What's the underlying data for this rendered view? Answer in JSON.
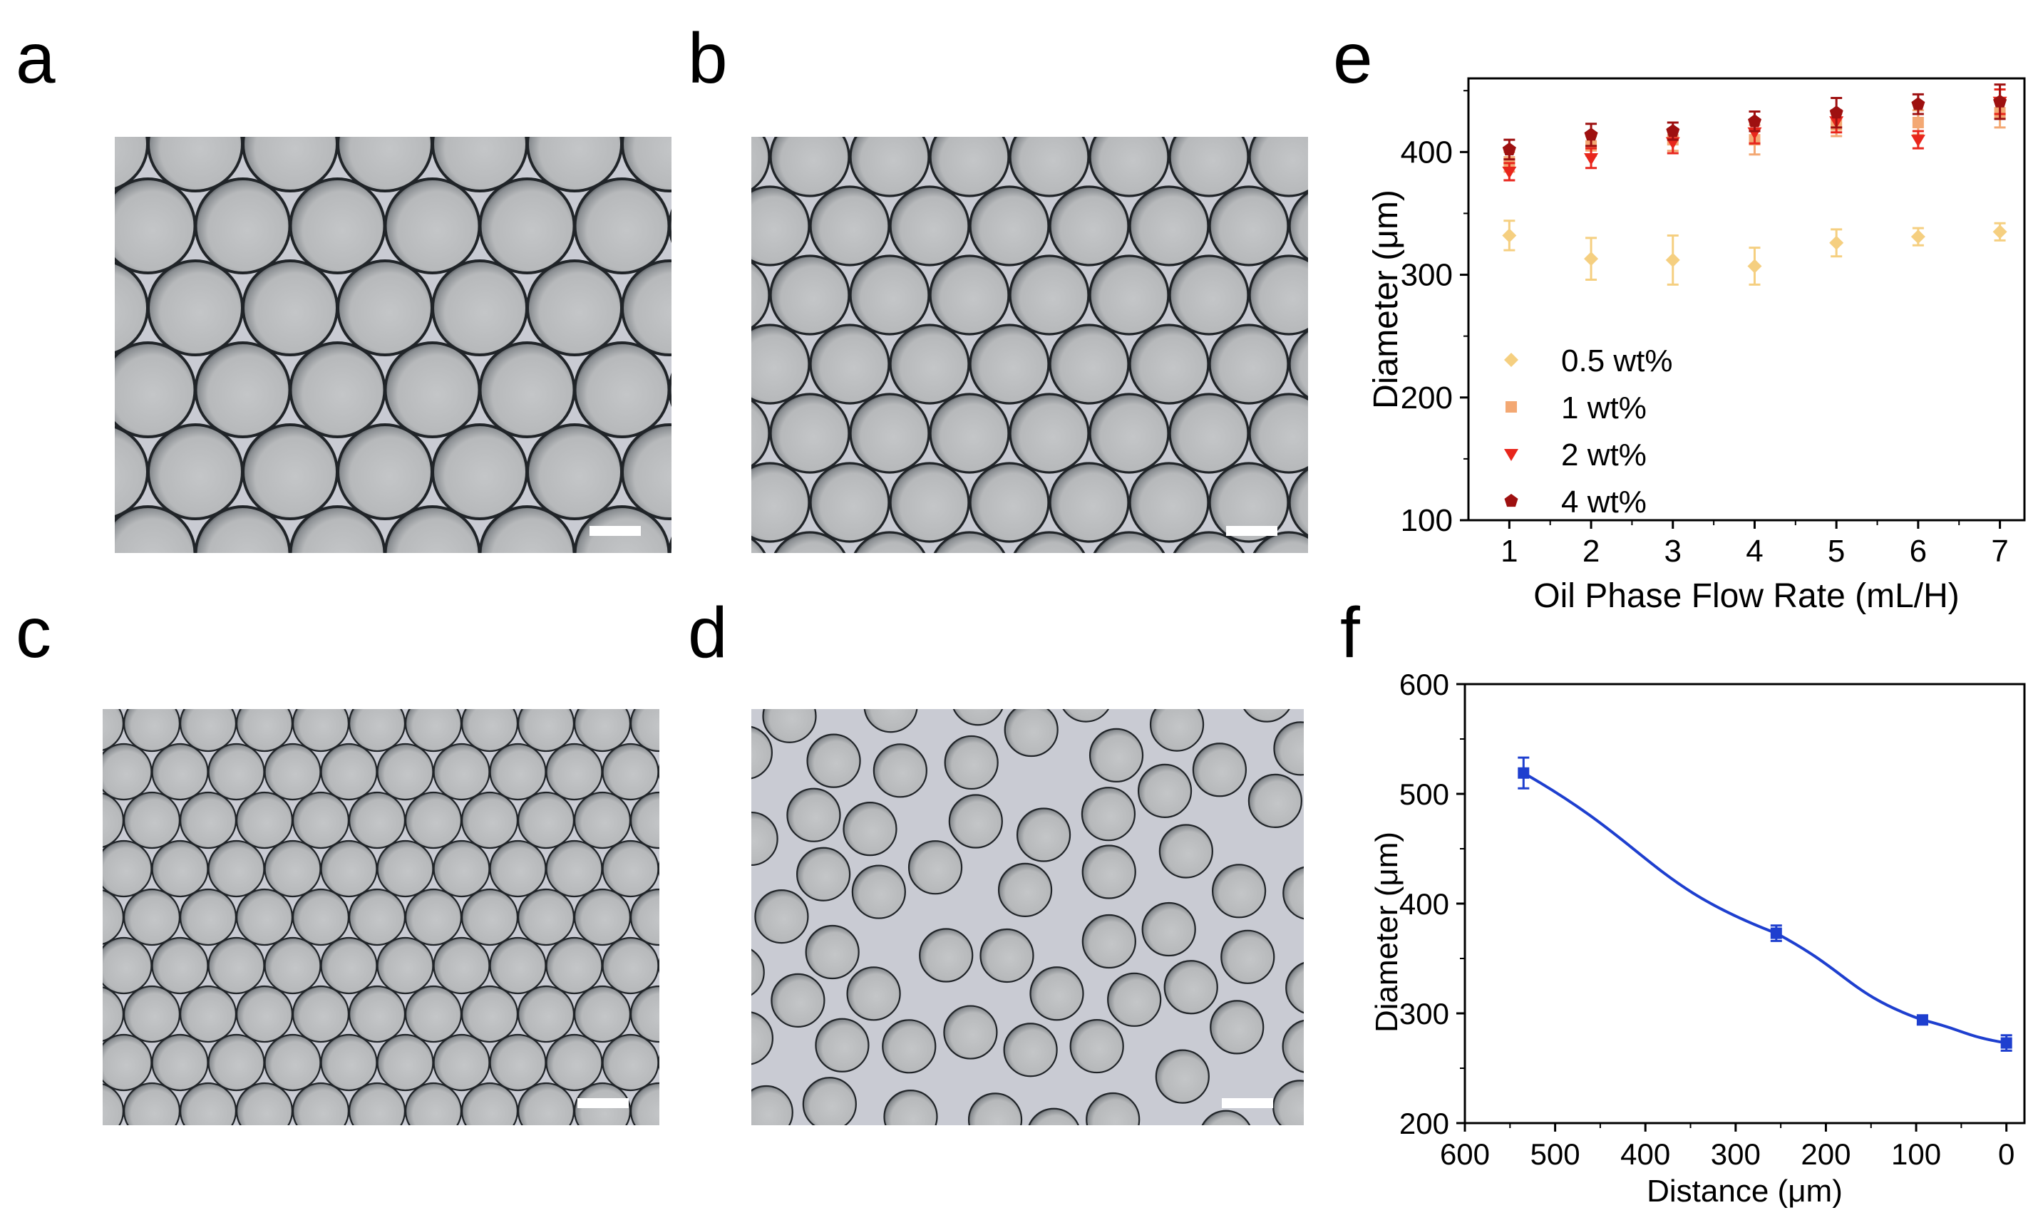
{
  "panels": {
    "a": {
      "letter": "a"
    },
    "b": {
      "letter": "b"
    },
    "c": {
      "letter": "c"
    },
    "d": {
      "letter": "d"
    },
    "e": {
      "letter": "e"
    },
    "f": {
      "letter": "f"
    }
  },
  "colors": {
    "series_0_5": "#f5cf80",
    "series_1": "#f3a873",
    "series_2": "#e8261c",
    "series_4": "#9e1010",
    "line_f": "#1e3fcf",
    "micro_bg": "#c9cbd3",
    "droplet_rim": "#202428",
    "scale_bar": "#ffffff"
  },
  "chart_data": [
    {
      "type": "scatter",
      "panel": "e",
      "xlabel": "Oil Phase Flow Rate (mL/H)",
      "ylabel": "Diameter (μm)",
      "xlim": [
        0.5,
        7.3
      ],
      "ylim": [
        100,
        460
      ],
      "xticks": [
        1,
        2,
        3,
        4,
        5,
        6,
        7
      ],
      "yticks": [
        100,
        200,
        300,
        400
      ],
      "legend_position": "bottom-left",
      "series": [
        {
          "name": "0.5 wt%",
          "marker": "diamond",
          "color": "#f5cf80",
          "x": [
            1,
            2,
            3,
            4,
            5,
            6,
            7
          ],
          "y": [
            332,
            313,
            312,
            307,
            326,
            331,
            335
          ],
          "err": [
            12,
            17,
            20,
            15,
            11,
            7,
            7
          ]
        },
        {
          "name": "1  wt%",
          "marker": "square",
          "color": "#f3a873",
          "x": [
            1,
            2,
            3,
            4,
            5,
            6,
            7
          ],
          "y": [
            392,
            405,
            410,
            410,
            422,
            424,
            432
          ],
          "err": [
            8,
            8,
            9,
            12,
            9,
            10,
            12
          ]
        },
        {
          "name": "2 wt%",
          "marker": "triangle-down",
          "color": "#e8261c",
          "x": [
            1,
            2,
            3,
            4,
            5,
            6,
            7
          ],
          "y": [
            384,
            395,
            408,
            416,
            425,
            410,
            441
          ],
          "err": [
            7,
            8,
            9,
            9,
            9,
            7,
            10
          ]
        },
        {
          "name": "4 wt%",
          "marker": "pentagon",
          "color": "#9e1010",
          "x": [
            1,
            2,
            3,
            4,
            5,
            6,
            7
          ],
          "y": [
            402,
            414,
            417,
            425,
            432,
            439,
            441
          ],
          "err": [
            8,
            9,
            7,
            8,
            12,
            8,
            14
          ]
        }
      ]
    },
    {
      "type": "line",
      "panel": "f",
      "xlabel": "Distance (μm)",
      "ylabel": "Diameter (μm)",
      "xlim": [
        600,
        -20
      ],
      "ylim": [
        200,
        600
      ],
      "xticks": [
        600,
        500,
        400,
        300,
        200,
        100,
        0
      ],
      "yticks": [
        200,
        300,
        400,
        500,
        600
      ],
      "series": [
        {
          "color": "#1e3fcf",
          "x": [
            535,
            255,
            93,
            0
          ],
          "y": [
            519,
            373,
            294,
            273
          ],
          "err": [
            14,
            7,
            4,
            7
          ]
        }
      ]
    }
  ]
}
